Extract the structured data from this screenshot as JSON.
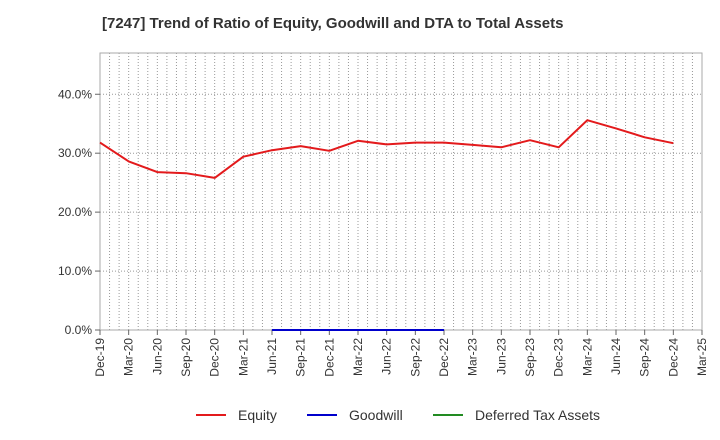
{
  "chart_data": {
    "type": "line",
    "title": "[7247]  Trend of Ratio of Equity, Goodwill and DTA to Total Assets",
    "xlabel": "",
    "ylabel": "",
    "ylim": [
      0,
      47
    ],
    "yticks": [
      0,
      10,
      20,
      30,
      40
    ],
    "ytick_labels": [
      "0.0%",
      "10.0%",
      "20.0%",
      "30.0%",
      "40.0%"
    ],
    "grid": true,
    "legend_position": "bottom",
    "categories": [
      "Dec-19",
      "Mar-20",
      "Jun-20",
      "Sep-20",
      "Dec-20",
      "Mar-21",
      "Jun-21",
      "Sep-21",
      "Dec-21",
      "Mar-22",
      "Jun-22",
      "Sep-22",
      "Dec-22",
      "Mar-23",
      "Jun-23",
      "Sep-23",
      "Dec-23",
      "Mar-24",
      "Jun-24",
      "Sep-24",
      "Dec-24",
      "Mar-25"
    ],
    "series": [
      {
        "name": "Equity",
        "color": "#e31a1c",
        "values": [
          31.8,
          28.6,
          26.8,
          26.6,
          25.8,
          29.4,
          30.5,
          31.2,
          30.4,
          32.1,
          31.5,
          31.8,
          31.8,
          31.4,
          31.0,
          32.2,
          31.0,
          35.6,
          34.2,
          32.7,
          31.7,
          null
        ]
      },
      {
        "name": "Goodwill",
        "color": "#0000cc",
        "values": [
          null,
          null,
          null,
          null,
          null,
          null,
          0,
          0,
          0,
          0,
          0,
          0,
          0,
          null,
          null,
          null,
          null,
          null,
          null,
          null,
          null,
          null
        ]
      },
      {
        "name": "Deferred Tax Assets",
        "color": "#228b22",
        "values": [
          null,
          null,
          null,
          null,
          null,
          null,
          null,
          null,
          null,
          null,
          null,
          null,
          null,
          null,
          null,
          null,
          null,
          null,
          null,
          null,
          null,
          null
        ]
      }
    ]
  }
}
